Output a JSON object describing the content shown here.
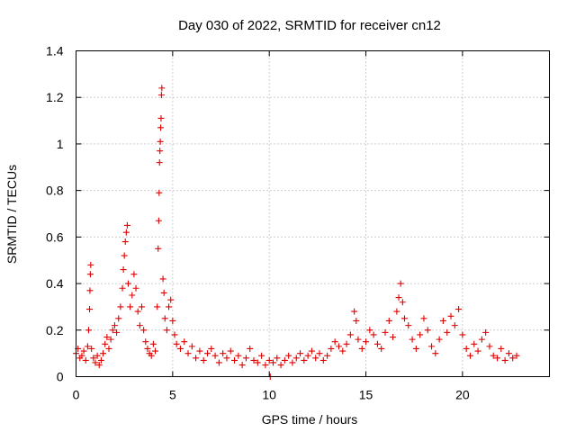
{
  "chart_data": {
    "type": "scatter",
    "title": "Day 030 of 2022, SRMTID for receiver cn12",
    "xlabel": "GPS time / hours",
    "ylabel": "SRMTID / TECUs",
    "xlim": [
      0,
      24.5
    ],
    "ylim": [
      0,
      1.4
    ],
    "xticks": [
      0,
      5,
      10,
      15,
      20
    ],
    "xtick_labels": [
      "0",
      "5",
      "10",
      "15",
      "20"
    ],
    "yticks": [
      0,
      0.2,
      0.4,
      0.6,
      0.8,
      1.0,
      1.2,
      1.4
    ],
    "ytick_labels": [
      "0",
      "0.2",
      "0.4",
      "0.6",
      "0.8",
      "1",
      "1.2",
      "1.4"
    ],
    "grid": true,
    "marker": "plus",
    "series": [
      {
        "name": "SRMTID",
        "color": "#e00000",
        "points": [
          [
            0.0,
            0.1
          ],
          [
            0.1,
            0.12
          ],
          [
            0.2,
            0.08
          ],
          [
            0.3,
            0.09
          ],
          [
            0.4,
            0.11
          ],
          [
            0.5,
            0.07
          ],
          [
            0.6,
            0.13
          ],
          [
            0.65,
            0.2
          ],
          [
            0.7,
            0.29
          ],
          [
            0.72,
            0.37
          ],
          [
            0.74,
            0.44
          ],
          [
            0.76,
            0.48
          ],
          [
            0.8,
            0.12
          ],
          [
            0.9,
            0.08
          ],
          [
            1.0,
            0.06
          ],
          [
            1.1,
            0.09
          ],
          [
            1.2,
            0.05
          ],
          [
            1.3,
            0.07
          ],
          [
            1.4,
            0.1
          ],
          [
            1.5,
            0.14
          ],
          [
            1.6,
            0.17
          ],
          [
            1.7,
            0.12
          ],
          [
            1.8,
            0.16
          ],
          [
            1.9,
            0.2
          ],
          [
            2.0,
            0.22
          ],
          [
            2.1,
            0.19
          ],
          [
            2.2,
            0.25
          ],
          [
            2.3,
            0.3
          ],
          [
            2.4,
            0.38
          ],
          [
            2.45,
            0.46
          ],
          [
            2.5,
            0.52
          ],
          [
            2.55,
            0.58
          ],
          [
            2.6,
            0.62
          ],
          [
            2.65,
            0.65
          ],
          [
            2.7,
            0.4
          ],
          [
            2.8,
            0.3
          ],
          [
            2.9,
            0.35
          ],
          [
            3.0,
            0.44
          ],
          [
            3.1,
            0.38
          ],
          [
            3.2,
            0.28
          ],
          [
            3.3,
            0.22
          ],
          [
            3.4,
            0.3
          ],
          [
            3.5,
            0.2
          ],
          [
            3.6,
            0.15
          ],
          [
            3.7,
            0.12
          ],
          [
            3.8,
            0.1
          ],
          [
            3.9,
            0.09
          ],
          [
            4.0,
            0.14
          ],
          [
            4.1,
            0.11
          ],
          [
            4.2,
            0.3
          ],
          [
            4.25,
            0.55
          ],
          [
            4.28,
            0.67
          ],
          [
            4.3,
            0.79
          ],
          [
            4.32,
            0.92
          ],
          [
            4.34,
            0.97
          ],
          [
            4.36,
            1.01
          ],
          [
            4.38,
            1.07
          ],
          [
            4.4,
            1.11
          ],
          [
            4.42,
            1.21
          ],
          [
            4.44,
            1.24
          ],
          [
            4.5,
            0.42
          ],
          [
            4.55,
            0.36
          ],
          [
            4.6,
            0.25
          ],
          [
            4.7,
            0.2
          ],
          [
            4.8,
            0.3
          ],
          [
            4.9,
            0.33
          ],
          [
            5.0,
            0.24
          ],
          [
            5.1,
            0.18
          ],
          [
            5.2,
            0.14
          ],
          [
            5.4,
            0.12
          ],
          [
            5.6,
            0.15
          ],
          [
            5.8,
            0.1
          ],
          [
            6.0,
            0.13
          ],
          [
            6.2,
            0.08
          ],
          [
            6.4,
            0.11
          ],
          [
            6.6,
            0.07
          ],
          [
            6.8,
            0.1
          ],
          [
            7.0,
            0.12
          ],
          [
            7.2,
            0.09
          ],
          [
            7.4,
            0.06
          ],
          [
            7.6,
            0.1
          ],
          [
            7.8,
            0.08
          ],
          [
            8.0,
            0.11
          ],
          [
            8.2,
            0.07
          ],
          [
            8.4,
            0.09
          ],
          [
            8.6,
            0.05
          ],
          [
            8.8,
            0.08
          ],
          [
            9.0,
            0.12
          ],
          [
            9.2,
            0.07
          ],
          [
            9.4,
            0.06
          ],
          [
            9.6,
            0.09
          ],
          [
            9.8,
            0.05
          ],
          [
            10.0,
            0.07
          ],
          [
            10.05,
            0.0
          ],
          [
            10.2,
            0.06
          ],
          [
            10.4,
            0.08
          ],
          [
            10.6,
            0.05
          ],
          [
            10.8,
            0.07
          ],
          [
            11.0,
            0.09
          ],
          [
            11.2,
            0.06
          ],
          [
            11.4,
            0.08
          ],
          [
            11.6,
            0.1
          ],
          [
            11.8,
            0.07
          ],
          [
            12.0,
            0.09
          ],
          [
            12.2,
            0.11
          ],
          [
            12.4,
            0.08
          ],
          [
            12.6,
            0.1
          ],
          [
            12.8,
            0.07
          ],
          [
            13.0,
            0.09
          ],
          [
            13.2,
            0.12
          ],
          [
            13.4,
            0.15
          ],
          [
            13.6,
            0.13
          ],
          [
            13.8,
            0.11
          ],
          [
            14.0,
            0.14
          ],
          [
            14.2,
            0.18
          ],
          [
            14.4,
            0.28
          ],
          [
            14.5,
            0.24
          ],
          [
            14.6,
            0.16
          ],
          [
            14.8,
            0.12
          ],
          [
            15.0,
            0.15
          ],
          [
            15.2,
            0.2
          ],
          [
            15.4,
            0.18
          ],
          [
            15.6,
            0.14
          ],
          [
            15.8,
            0.12
          ],
          [
            16.0,
            0.19
          ],
          [
            16.2,
            0.24
          ],
          [
            16.4,
            0.17
          ],
          [
            16.6,
            0.28
          ],
          [
            16.7,
            0.34
          ],
          [
            16.8,
            0.4
          ],
          [
            16.9,
            0.32
          ],
          [
            17.0,
            0.25
          ],
          [
            17.2,
            0.22
          ],
          [
            17.4,
            0.16
          ],
          [
            17.6,
            0.12
          ],
          [
            17.8,
            0.18
          ],
          [
            18.0,
            0.25
          ],
          [
            18.2,
            0.2
          ],
          [
            18.4,
            0.13
          ],
          [
            18.6,
            0.1
          ],
          [
            18.8,
            0.16
          ],
          [
            19.0,
            0.24
          ],
          [
            19.2,
            0.19
          ],
          [
            19.4,
            0.26
          ],
          [
            19.6,
            0.22
          ],
          [
            19.8,
            0.29
          ],
          [
            20.0,
            0.18
          ],
          [
            20.2,
            0.12
          ],
          [
            20.4,
            0.09
          ],
          [
            20.6,
            0.14
          ],
          [
            20.8,
            0.11
          ],
          [
            21.0,
            0.16
          ],
          [
            21.2,
            0.19
          ],
          [
            21.4,
            0.13
          ],
          [
            21.6,
            0.09
          ],
          [
            21.8,
            0.08
          ],
          [
            22.0,
            0.12
          ],
          [
            22.2,
            0.07
          ],
          [
            22.4,
            0.1
          ],
          [
            22.6,
            0.08
          ],
          [
            22.8,
            0.09
          ]
        ]
      }
    ]
  }
}
